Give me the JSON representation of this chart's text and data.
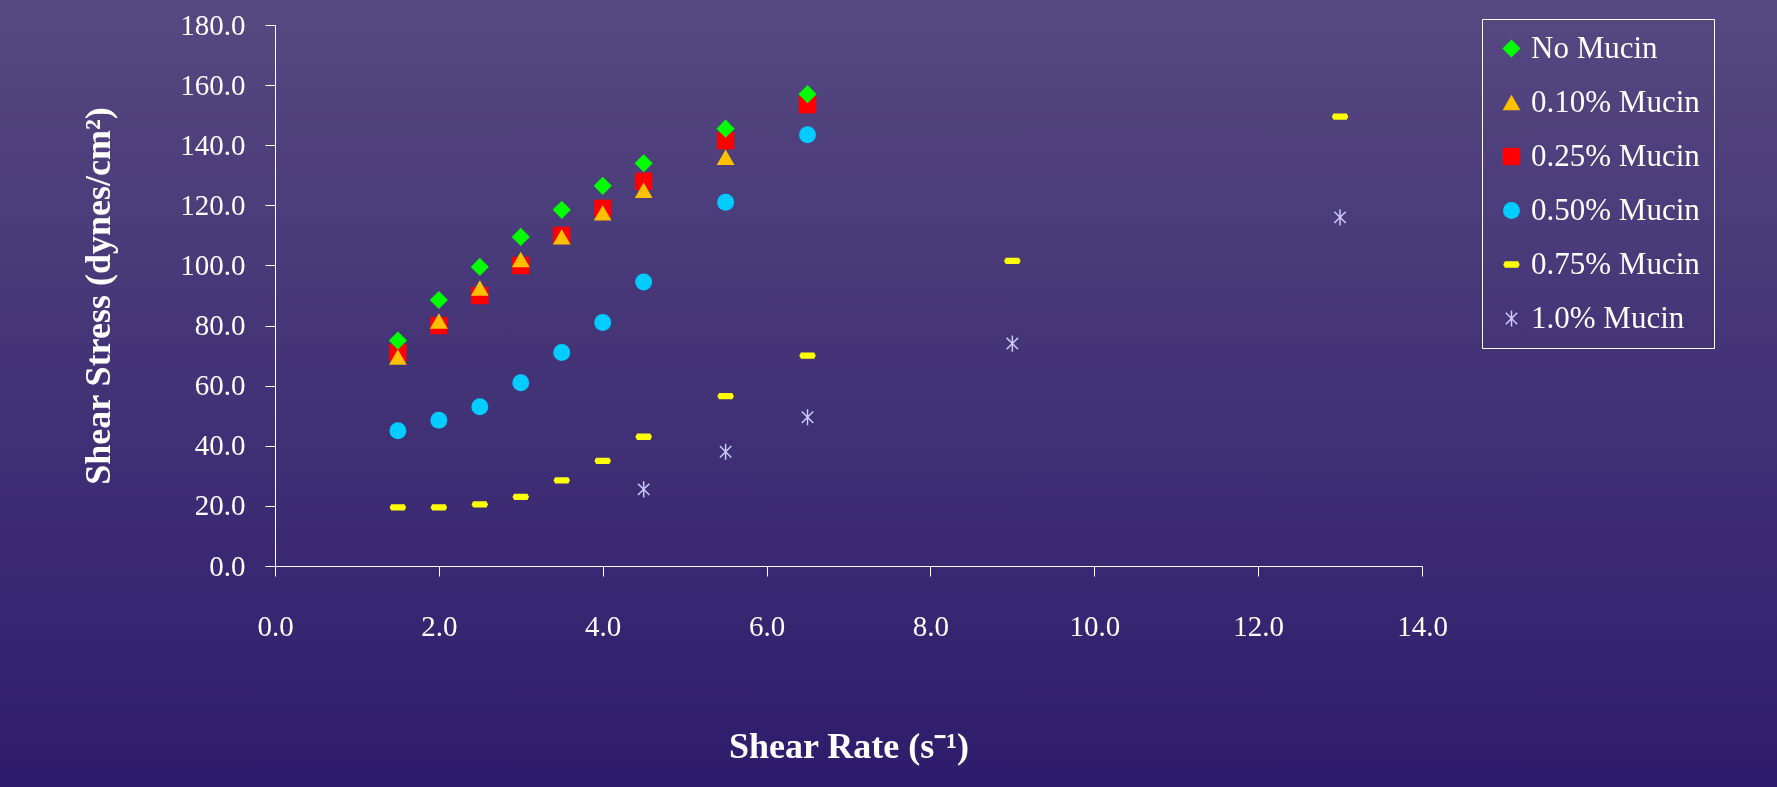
{
  "chart_data": {
    "type": "scatter",
    "xlabel": "Shear Rate (s⁻¹)",
    "ylabel": "Shear Stress (dynes/cm²)",
    "x": [
      1.5,
      2,
      2.5,
      3,
      3.5,
      4,
      4.5,
      5.5,
      6.5,
      9,
      13
    ],
    "series": [
      {
        "name": "No Mucin",
        "color": "#00ff00",
        "marker": "diamond",
        "values": [
          75,
          88.5,
          99.5,
          109.5,
          118.5,
          126.5,
          134,
          145.5,
          157,
          null,
          null
        ]
      },
      {
        "name": "0.10% Mucin",
        "color": "#ffc000",
        "marker": "triangle",
        "values": [
          69.5,
          81.5,
          92.5,
          102,
          109.5,
          117.5,
          125,
          136,
          null,
          null,
          null
        ]
      },
      {
        "name": "0.25% Mucin",
        "color": "#ff0000",
        "marker": "square",
        "values": [
          71,
          80,
          90,
          100,
          110,
          119,
          128,
          141.5,
          153.5,
          null,
          null
        ]
      },
      {
        "name": "0.50% Mucin",
        "color": "#00ccff",
        "marker": "circle",
        "values": [
          45,
          48.5,
          53,
          61,
          71,
          81,
          94.5,
          121,
          143.5,
          null,
          null
        ]
      },
      {
        "name": "0.75% Mucin",
        "color": "#ffff00",
        "values": [
          19.5,
          19.5,
          20.5,
          23,
          28.5,
          35,
          43,
          56.5,
          70,
          101.5,
          149.5
        ]
      },
      {
        "name": "1.0% Mucin",
        "color": "#ccccff",
        "marker": "cross",
        "values": [
          null,
          null,
          null,
          null,
          null,
          null,
          25.5,
          38,
          49.5,
          74,
          116
        ]
      }
    ],
    "xlim": [
      0,
      14
    ],
    "xticks": [
      {
        "value": 0,
        "label": "0.0"
      },
      {
        "value": 2,
        "label": "2.0"
      },
      {
        "value": 4,
        "label": "4.0"
      },
      {
        "value": 6,
        "label": "6.0"
      },
      {
        "value": 8,
        "label": "8.0"
      },
      {
        "value": 10,
        "label": "10.0"
      },
      {
        "value": 12,
        "label": "12.0"
      },
      {
        "value": 14,
        "label": "14.0"
      }
    ],
    "ylim": [
      0,
      180
    ],
    "yticks": [
      {
        "value": 0,
        "label": "0.0"
      },
      {
        "value": 20,
        "label": "20.0"
      },
      {
        "value": 40,
        "label": "40.0"
      },
      {
        "value": 60,
        "label": "60.0"
      },
      {
        "value": 80,
        "label": "80.0"
      },
      {
        "value": 100,
        "label": "100.0"
      },
      {
        "value": 120,
        "label": "120.0"
      },
      {
        "value": 140,
        "label": "140.0"
      },
      {
        "value": 160,
        "label": "160.0"
      },
      {
        "value": 180,
        "label": "180.0"
      }
    ],
    "grid": false,
    "legend": "top right"
  }
}
